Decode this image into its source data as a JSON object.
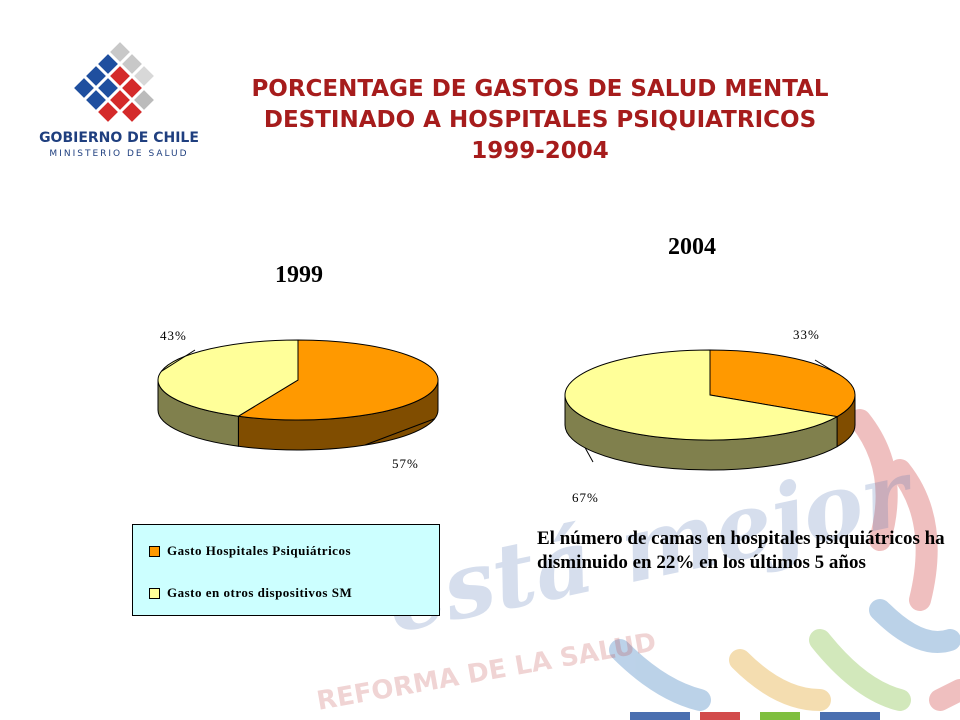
{
  "header": {
    "logo_line1": "GOBIERNO DE CHILE",
    "logo_line2": "MINISTERIO DE SALUD",
    "title": "PORCENTAGE DE GASTOS DE SALUD MENTAL DESTINADO A HOSPITALES PSIQUIATRICOS 1999-2004"
  },
  "watermark": {
    "script_text": "está mejor",
    "tagline": "REFORMA DE LA SALUD"
  },
  "colors": {
    "title": "#a61c1c",
    "hospitales": "#ff9900",
    "otros": "#ffff99",
    "legend_bg": "#ccffff"
  },
  "chart_data": [
    {
      "type": "pie",
      "style": "3d",
      "title": "1999",
      "slices": [
        {
          "label": "Gasto Hospitales Psiquiátricos",
          "value": 57,
          "text": "57%",
          "color": "#ff9900"
        },
        {
          "label": "Gasto en otros dispositivos SM",
          "value": 43,
          "text": "43%",
          "color": "#ffff99"
        }
      ]
    },
    {
      "type": "pie",
      "style": "3d",
      "title": "2004",
      "slices": [
        {
          "label": "Gasto Hospitales Psiquiátricos",
          "value": 33,
          "text": "33%",
          "color": "#ff9900"
        },
        {
          "label": "Gasto en otros dispositivos SM",
          "value": 67,
          "text": "67%",
          "color": "#ffff99"
        }
      ]
    }
  ],
  "legend": {
    "items": [
      {
        "label": "Gasto Hospitales Psiquiátricos",
        "color": "#ff9900"
      },
      {
        "label": "Gasto en otros dispositivos SM",
        "color": "#ffff99"
      }
    ]
  },
  "note": {
    "text": "El número de camas en hospitales psiquiátricos ha disminuido en 22% en los últimos  5 años"
  }
}
